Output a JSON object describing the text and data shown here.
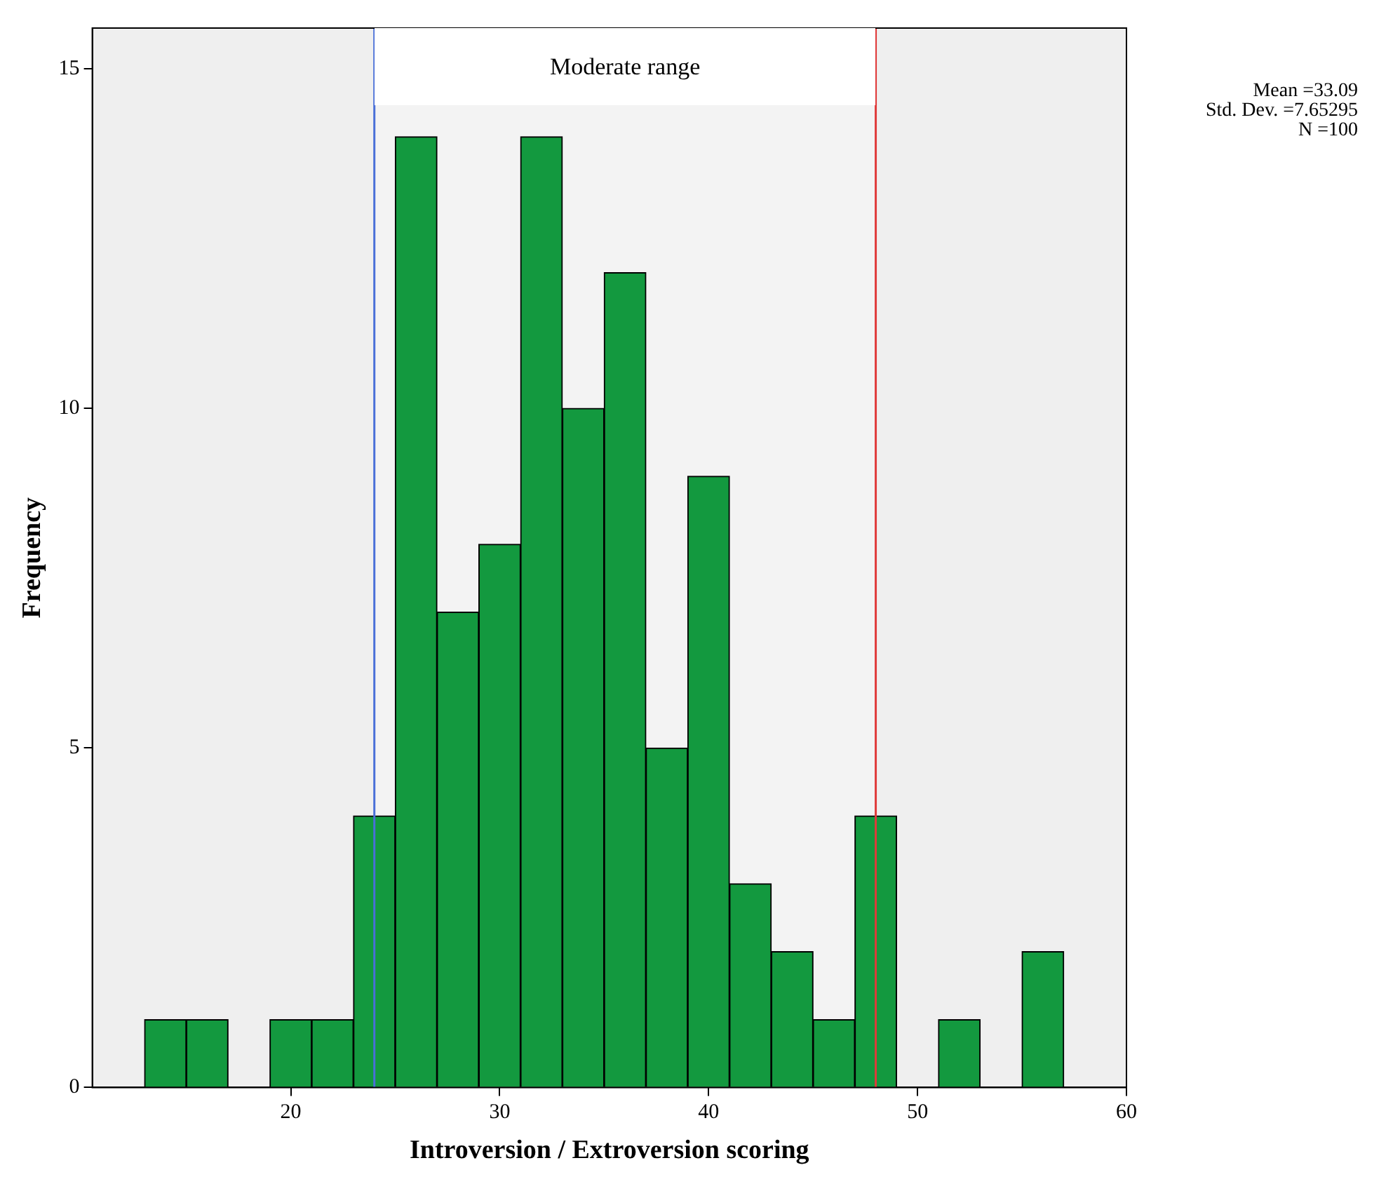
{
  "chart_data": {
    "type": "histogram",
    "xlabel": "Introversion / Extroversion scoring",
    "ylabel": "Frequency",
    "bins": [
      13,
      15,
      17,
      19,
      21,
      23,
      25,
      27,
      29,
      31,
      33,
      35,
      37,
      39,
      41,
      43,
      45,
      47,
      49,
      51,
      53,
      55,
      57
    ],
    "values": [
      1,
      1,
      0,
      1,
      1,
      4,
      14,
      7,
      8,
      14,
      10,
      12,
      5,
      9,
      3,
      2,
      1,
      4,
      0,
      1,
      0,
      2
    ],
    "color": "#13993f",
    "xlim": [
      10.5,
      60
    ],
    "xticks": [
      20,
      30,
      40,
      50,
      60
    ],
    "ylim": [
      0,
      15.6
    ],
    "yticks": [
      0,
      5,
      10,
      15
    ],
    "grid": false,
    "legend": false,
    "ref_lines": [
      {
        "axis": "x",
        "value": 24,
        "color": "#4a6fd8"
      },
      {
        "axis": "x",
        "value": 48,
        "color": "#e03a3a"
      }
    ],
    "bands": [
      {
        "axis": "x",
        "from": 24,
        "to": 48,
        "label": "Moderate range",
        "color": "#ffffff"
      }
    ],
    "annotations": [
      "Mean =33.09",
      "Std. Dev. =7.65295",
      "N =100"
    ]
  }
}
